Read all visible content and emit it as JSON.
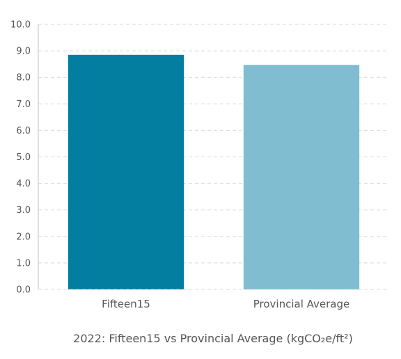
{
  "chart_data": {
    "type": "bar",
    "title": "2022: Fifteen15 vs Provincial Average (kgCO₂e/ft²)",
    "xlabel": "",
    "ylabel": "",
    "categories": [
      "Fifteen15",
      "Provincial Average"
    ],
    "values": [
      8.85,
      8.47
    ],
    "bar_colors": [
      "#037ea1",
      "#80bdd1"
    ],
    "ylim": [
      0,
      10
    ],
    "yticks": [
      "0.0",
      "1.0",
      "2.0",
      "3.0",
      "4.0",
      "5.0",
      "6.0",
      "7.0",
      "8.0",
      "9.0",
      "10.0"
    ],
    "grid": true,
    "legend": "none"
  },
  "colors": {
    "grid": "#d9d9d9",
    "axis": "#bfbfbf",
    "text": "#555555"
  }
}
